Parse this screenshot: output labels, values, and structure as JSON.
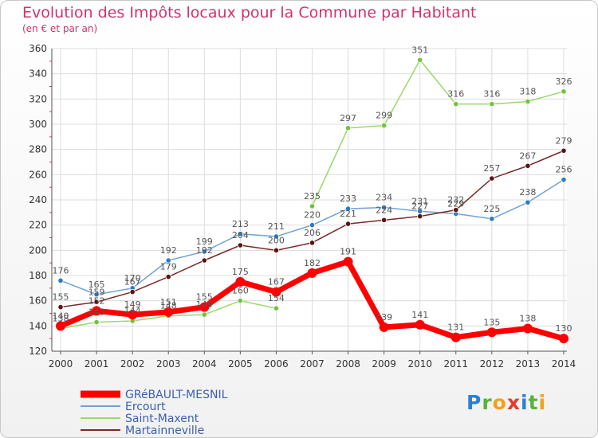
{
  "title": "Evolution des Impôts locaux pour la Commune par Habitant",
  "subtitle": "(en € et par an)",
  "brand": {
    "letters": [
      {
        "ch": "P",
        "color": "#2e7fd0"
      },
      {
        "ch": "r",
        "color": "#58b339"
      },
      {
        "ch": "o",
        "color": "#f3a11d"
      },
      {
        "ch": "x",
        "color": "#e33b2d"
      },
      {
        "ch": "i",
        "color": "#2e7fd0"
      },
      {
        "ch": "t",
        "color": "#58b339"
      },
      {
        "ch": "i",
        "color": "#f3a11d"
      }
    ]
  },
  "chart_data": {
    "type": "line",
    "title": "Evolution des Impôts locaux pour la Commune par Habitant",
    "subtitle": "(en € et par an)",
    "xlabel": "",
    "ylabel": "",
    "ylim": [
      120,
      360
    ],
    "yticks": [
      120,
      140,
      160,
      180,
      200,
      220,
      240,
      260,
      280,
      300,
      320,
      340,
      360
    ],
    "grid": true,
    "categories": [
      "2000",
      "2001",
      "2002",
      "2003",
      "2004",
      "2005",
      "2006",
      "2007",
      "2008",
      "2009",
      "2010",
      "2011",
      "2012",
      "2013",
      "2014"
    ],
    "legend_position": "bottom-left",
    "series": [
      {
        "name": "GRéBAULT-MESNIL",
        "color": "#ff0000",
        "marker_color": "#ff0000",
        "values": [
          140,
          152,
          149,
          151,
          155,
          175,
          167,
          182,
          191,
          139,
          141,
          131,
          135,
          138,
          130
        ],
        "labels": [
          "140",
          "152",
          "149",
          "151",
          "155",
          "175",
          "167",
          "182",
          "191",
          "139",
          "141",
          "131",
          "135",
          "138",
          "130"
        ]
      },
      {
        "name": "Ercourt",
        "color": "#6fa3d6",
        "marker_color": "#2b7bc0",
        "values": [
          176,
          165,
          170,
          192,
          199,
          213,
          211,
          220,
          233,
          234,
          231,
          229,
          225,
          238,
          256
        ],
        "labels": [
          "176",
          "165",
          "170",
          "192",
          "199",
          "213",
          "211",
          "220",
          "233",
          "234",
          "231",
          "229",
          "225",
          "238",
          "256"
        ]
      },
      {
        "name": "Saint-Maxent",
        "color": "#9ad96a",
        "marker_color": "#6ec43c",
        "values": [
          138,
          143,
          144,
          148,
          149,
          160,
          154,
          235,
          297,
          299,
          351,
          316,
          316,
          318,
          326
        ],
        "labels": [
          "138",
          "143",
          "144",
          "148",
          "149",
          "160",
          "154",
          "235",
          "297",
          "299",
          "351",
          "316",
          "316",
          "318",
          "326"
        ],
        "gap_after_index": 6
      },
      {
        "name": "Martainneville",
        "color": "#7a2a2a",
        "marker_color": "#5a1414",
        "values": [
          155,
          159,
          167,
          179,
          192,
          204,
          200,
          206,
          221,
          224,
          227,
          232,
          257,
          267,
          279
        ],
        "labels": [
          "155",
          "159",
          "167",
          "179",
          "192",
          "204",
          "200",
          "206",
          "221",
          "224",
          "227",
          "232",
          "257",
          "267",
          "279"
        ]
      }
    ]
  }
}
